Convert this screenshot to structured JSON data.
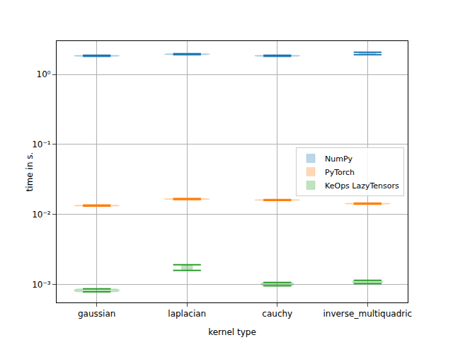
{
  "chart_data": {
    "type": "violin",
    "x_label": "kernel type",
    "y_label": "time in s.",
    "categories": [
      "gaussian",
      "laplacian",
      "cauchy",
      "inverse_multiquadric"
    ],
    "series": [
      {
        "name": "NumPy",
        "color": "#1f77b4",
        "values": [
          [
            1.82,
            1.88
          ],
          [
            1.92,
            1.98
          ],
          [
            1.82,
            1.88
          ],
          [
            1.92,
            2.08
          ]
        ]
      },
      {
        "name": "PyTorch",
        "color": "#ff7f0e",
        "values": [
          [
            0.0131,
            0.0136
          ],
          [
            0.0163,
            0.0168
          ],
          [
            0.0158,
            0.0163
          ],
          [
            0.014,
            0.0145
          ]
        ]
      },
      {
        "name": "KeOps LazyTensors",
        "color": "#2ca02c",
        "values": [
          [
            0.00078,
            0.00086
          ],
          [
            0.00158,
            0.0019
          ],
          [
            0.00095,
            0.00106
          ],
          [
            0.00102,
            0.00114
          ]
        ]
      }
    ],
    "log": "y",
    "ylim": [
      0.00055,
      3.0
    ],
    "yticks": [
      {
        "value": 0.001,
        "label": "10⁻³"
      },
      {
        "value": 0.01,
        "label": "10⁻²"
      },
      {
        "value": 0.1,
        "label": "10⁻¹"
      },
      {
        "value": 1,
        "label": "10⁰"
      }
    ],
    "grid": true,
    "legend": "center right"
  }
}
